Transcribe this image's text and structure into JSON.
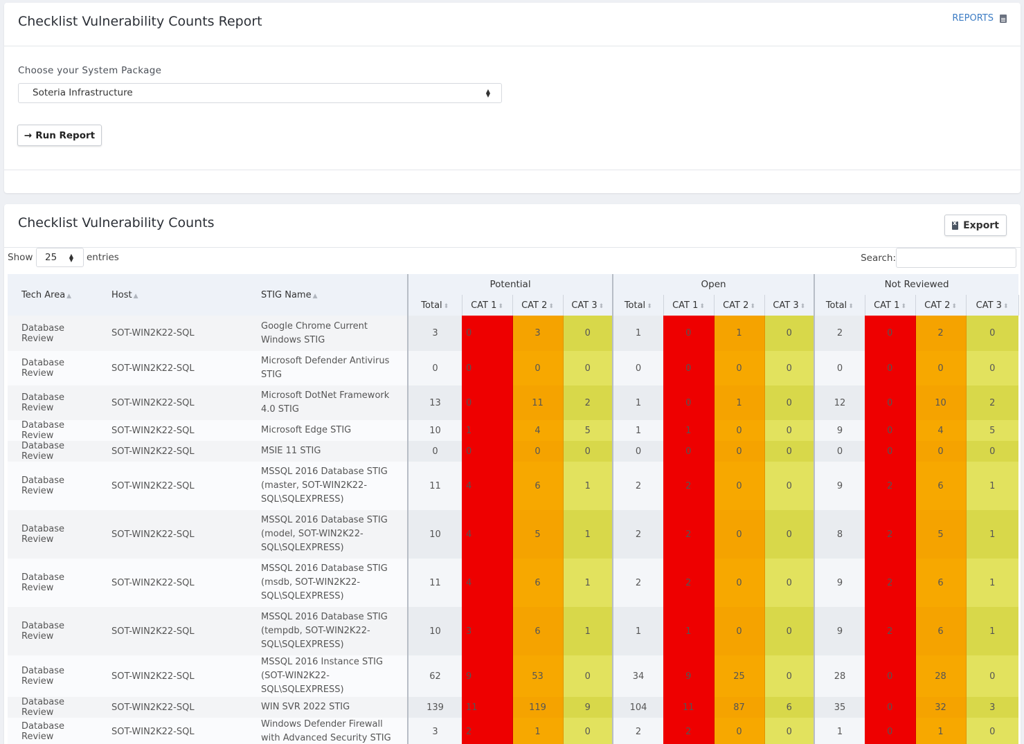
{
  "report_card": {
    "title": "Checklist Vulnerability Counts Report",
    "reports_link": "REPORTS",
    "package_label": "Choose your System Package",
    "package_selected": "Soteria Infrastructure",
    "run_button": "Run Report"
  },
  "results_card": {
    "title": "Checklist Vulnerability Counts",
    "export_button": "Export",
    "show_label": "Show",
    "page_length": "25",
    "entries_label": "entries",
    "search_label": "Search:",
    "search_value": ""
  },
  "table": {
    "headers": {
      "tech_area": "Tech Area",
      "host": "Host",
      "stig_name": "STIG Name",
      "groups": [
        "Potential",
        "Open",
        "Not Reviewed"
      ],
      "sub": [
        "Total",
        "CAT 1",
        "CAT 2",
        "CAT 3"
      ]
    },
    "rows": [
      {
        "tech_area": "Database Review",
        "host": "SOT-WIN2K22-SQL",
        "stig": "Google Chrome Current Windows STIG",
        "p": [
          "3",
          "0",
          "3",
          "0"
        ],
        "o": [
          "1",
          "0",
          "1",
          "0"
        ],
        "n": [
          "2",
          "0",
          "2",
          "0"
        ]
      },
      {
        "tech_area": "Database Review",
        "host": "SOT-WIN2K22-SQL",
        "stig": "Microsoft Defender Antivirus STIG",
        "p": [
          "0",
          "0",
          "0",
          "0"
        ],
        "o": [
          "0",
          "0",
          "0",
          "0"
        ],
        "n": [
          "0",
          "0",
          "0",
          "0"
        ]
      },
      {
        "tech_area": "Database Review",
        "host": "SOT-WIN2K22-SQL",
        "stig": "Microsoft DotNet Framework 4.0 STIG",
        "p": [
          "13",
          "0",
          "11",
          "2"
        ],
        "o": [
          "1",
          "0",
          "1",
          "0"
        ],
        "n": [
          "12",
          "0",
          "10",
          "2"
        ]
      },
      {
        "tech_area": "Database Review",
        "host": "SOT-WIN2K22-SQL",
        "stig": "Microsoft Edge STIG",
        "p": [
          "10",
          "1",
          "4",
          "5"
        ],
        "o": [
          "1",
          "1",
          "0",
          "0"
        ],
        "n": [
          "9",
          "0",
          "4",
          "5"
        ]
      },
      {
        "tech_area": "Database Review",
        "host": "SOT-WIN2K22-SQL",
        "stig": "MSIE 11 STIG",
        "p": [
          "0",
          "0",
          "0",
          "0"
        ],
        "o": [
          "0",
          "0",
          "0",
          "0"
        ],
        "n": [
          "0",
          "0",
          "0",
          "0"
        ]
      },
      {
        "tech_area": "Database Review",
        "host": "SOT-WIN2K22-SQL",
        "stig": "MSSQL 2016 Database STIG (master, SOT-WIN2K22-SQL\\SQLEXPRESS)",
        "p": [
          "11",
          "4",
          "6",
          "1"
        ],
        "o": [
          "2",
          "2",
          "0",
          "0"
        ],
        "n": [
          "9",
          "2",
          "6",
          "1"
        ]
      },
      {
        "tech_area": "Database Review",
        "host": "SOT-WIN2K22-SQL",
        "stig": "MSSQL 2016 Database STIG (model, SOT-WIN2K22-SQL\\SQLEXPRESS)",
        "p": [
          "10",
          "4",
          "5",
          "1"
        ],
        "o": [
          "2",
          "2",
          "0",
          "0"
        ],
        "n": [
          "8",
          "2",
          "5",
          "1"
        ]
      },
      {
        "tech_area": "Database Review",
        "host": "SOT-WIN2K22-SQL",
        "stig": "MSSQL 2016 Database STIG (msdb, SOT-WIN2K22-SQL\\SQLEXPRESS)",
        "p": [
          "11",
          "4",
          "6",
          "1"
        ],
        "o": [
          "2",
          "2",
          "0",
          "0"
        ],
        "n": [
          "9",
          "2",
          "6",
          "1"
        ]
      },
      {
        "tech_area": "Database Review",
        "host": "SOT-WIN2K22-SQL",
        "stig": "MSSQL 2016 Database STIG (tempdb, SOT-WIN2K22-SQL\\SQLEXPRESS)",
        "p": [
          "10",
          "3",
          "6",
          "1"
        ],
        "o": [
          "1",
          "1",
          "0",
          "0"
        ],
        "n": [
          "9",
          "2",
          "6",
          "1"
        ]
      },
      {
        "tech_area": "Database Review",
        "host": "SOT-WIN2K22-SQL",
        "stig": "MSSQL 2016 Instance STIG (SOT-WIN2K22-SQL\\SQLEXPRESS)",
        "p": [
          "62",
          "9",
          "53",
          "0"
        ],
        "o": [
          "34",
          "9",
          "25",
          "0"
        ],
        "n": [
          "28",
          "0",
          "28",
          "0"
        ]
      },
      {
        "tech_area": "Database Review",
        "host": "SOT-WIN2K22-SQL",
        "stig": "WIN SVR 2022 STIG",
        "p": [
          "139",
          "11",
          "119",
          "9"
        ],
        "o": [
          "104",
          "11",
          "87",
          "6"
        ],
        "n": [
          "35",
          "0",
          "32",
          "3"
        ]
      },
      {
        "tech_area": "Database Review",
        "host": "SOT-WIN2K22-SQL",
        "stig": "Windows Defender Firewall with Advanced Security STIG",
        "p": [
          "3",
          "2",
          "1",
          "0"
        ],
        "o": [
          "2",
          "2",
          "0",
          "0"
        ],
        "n": [
          "1",
          "0",
          "1",
          "0"
        ]
      }
    ]
  },
  "colors": {
    "cat1": "#ee0000",
    "cat2": "#f5a300",
    "cat3": "#d9d94b",
    "link": "#3a78c0"
  }
}
